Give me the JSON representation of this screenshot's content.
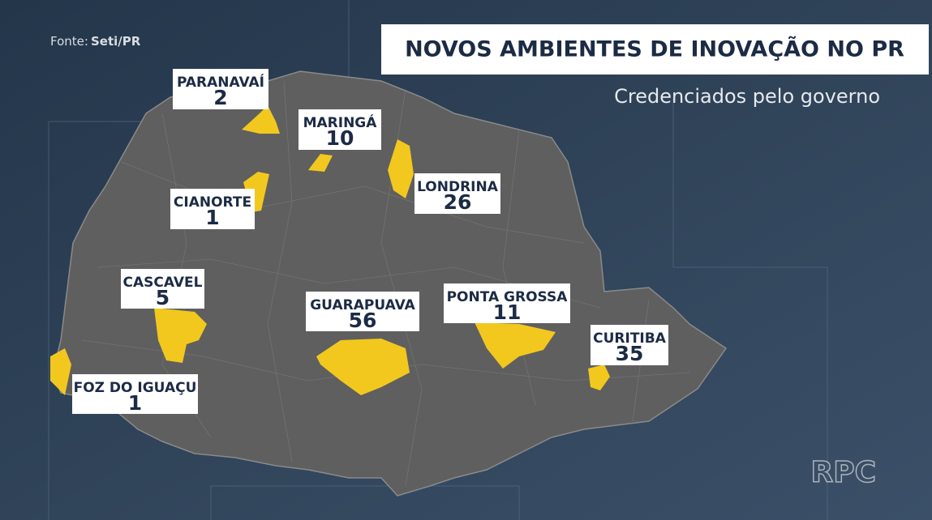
{
  "source": {
    "label": "Fonte:",
    "value": "Seti/PR"
  },
  "title": "NOVOS AMBIENTES DE INOVAÇÃO NO PR",
  "subtitle": "Credenciados pelo governo",
  "cities": [
    {
      "name": "PARANAVAÍ",
      "count": "2"
    },
    {
      "name": "MARINGÁ",
      "count": "10"
    },
    {
      "name": "LONDRINA",
      "count": "26"
    },
    {
      "name": "CIANORTE",
      "count": "1"
    },
    {
      "name": "CASCAVEL",
      "count": "5"
    },
    {
      "name": "GUARAPUAVA",
      "count": "56"
    },
    {
      "name": "PONTA GROSSA",
      "count": "11"
    },
    {
      "name": "CURITIBA",
      "count": "35"
    },
    {
      "name": "FOZ DO IGUAÇU",
      "count": "1"
    }
  ],
  "logo": "RPC"
}
